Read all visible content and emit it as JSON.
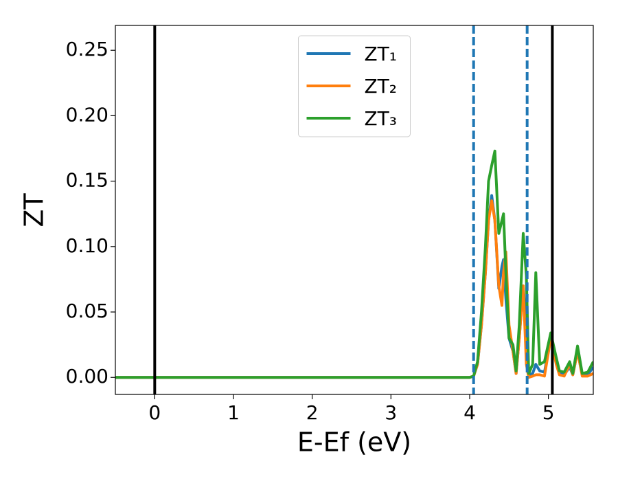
{
  "chart_data": {
    "type": "line",
    "x_label": "E-Ef (eV)",
    "y_label": "ZT",
    "x": [
      -0.5,
      3.9,
      4.0,
      4.05,
      4.1,
      4.15,
      4.2,
      4.24,
      4.28,
      4.32,
      4.37,
      4.41,
      4.43,
      4.46,
      4.5,
      4.55,
      4.59,
      4.63,
      4.68,
      4.72,
      4.75,
      4.8,
      4.84,
      4.89,
      4.95,
      5.03,
      5.1,
      5.14,
      5.2,
      5.27,
      5.31,
      5.37,
      5.43,
      5.5,
      5.57
    ],
    "series": [
      {
        "name": "ZT₁",
        "color": "#1f77b4",
        "values": [
          0,
          0,
          0,
          0.001,
          0.01,
          0.04,
          0.08,
          0.12,
          0.139,
          0.12,
          0.068,
          0.085,
          0.09,
          0.06,
          0.03,
          0.02,
          0.003,
          0.03,
          0.07,
          0.04,
          0.002,
          0.003,
          0.01,
          0.005,
          0.004,
          0.03,
          0.015,
          0.003,
          0.002,
          0.008,
          0.002,
          0.02,
          0.002,
          0.002,
          0.008
        ]
      },
      {
        "name": "ZT₂",
        "color": "#ff7f0e",
        "values": [
          0,
          0,
          0,
          0.001,
          0.01,
          0.04,
          0.08,
          0.12,
          0.135,
          0.12,
          0.07,
          0.055,
          0.08,
          0.096,
          0.04,
          0.02,
          0.003,
          0.03,
          0.07,
          0.01,
          0,
          0.001,
          0.002,
          0.002,
          0.001,
          0.03,
          0.01,
          0.002,
          0.001,
          0.01,
          0.002,
          0.02,
          0.001,
          0.001,
          0.003
        ]
      },
      {
        "name": "ZT₃",
        "color": "#2ca02c",
        "values": [
          0,
          0,
          0,
          0.001,
          0.012,
          0.05,
          0.1,
          0.15,
          0.162,
          0.173,
          0.11,
          0.12,
          0.125,
          0.08,
          0.03,
          0.025,
          0.005,
          0.04,
          0.11,
          0.078,
          0.003,
          0.01,
          0.08,
          0.01,
          0.012,
          0.034,
          0.015,
          0.005,
          0.004,
          0.012,
          0.003,
          0.024,
          0.003,
          0.004,
          0.012
        ]
      }
    ],
    "vlines": [
      {
        "x": 0,
        "color": "#000000",
        "style": "solid"
      },
      {
        "x": 5.05,
        "color": "#000000",
        "style": "solid"
      },
      {
        "x": 4.05,
        "color": "#1f77b4",
        "style": "dashed"
      },
      {
        "x": 4.73,
        "color": "#1f77b4",
        "style": "dashed"
      }
    ],
    "xlim": [
      -0.5,
      5.57
    ],
    "ylim": [
      -0.013,
      0.269
    ],
    "xticks": [
      0,
      1,
      2,
      3,
      4,
      5
    ],
    "yticks": [
      {
        "value": 0,
        "label": "0.00"
      },
      {
        "value": 0.05,
        "label": "0.05"
      },
      {
        "value": 0.1,
        "label": "0.10"
      },
      {
        "value": 0.15,
        "label": "0.15"
      },
      {
        "value": 0.2,
        "label": "0.20"
      },
      {
        "value": 0.25,
        "label": "0.25"
      }
    ],
    "grid": false,
    "legend": "upper center"
  }
}
